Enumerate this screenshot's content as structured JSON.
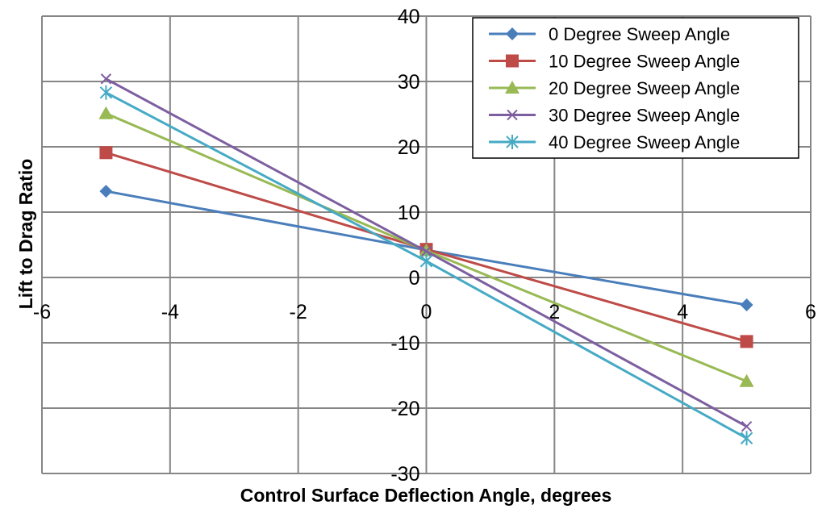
{
  "chart_data": {
    "type": "line",
    "title": "",
    "xlabel": "Control Surface Deflection Angle, degrees",
    "ylabel": "Lift to Drag Ratio",
    "xlim": [
      -6,
      6
    ],
    "ylim": [
      -30,
      40
    ],
    "xticks": [
      -6,
      -4,
      -2,
      0,
      2,
      4,
      6
    ],
    "yticks": [
      -30,
      -20,
      -10,
      0,
      10,
      20,
      30,
      40
    ],
    "grid": true,
    "legend_position": "top-right",
    "x": [
      -5,
      0,
      5
    ],
    "series": [
      {
        "name": "0 Degree Sweep Angle",
        "color": "#4a7ebb",
        "marker": "diamond",
        "values": [
          13.2,
          4.2,
          -4.2
        ]
      },
      {
        "name": "10 Degree Sweep Angle",
        "color": "#be4b48",
        "marker": "square",
        "values": [
          19.1,
          4.3,
          -9.8
        ]
      },
      {
        "name": "20 Degree Sweep Angle",
        "color": "#98b954",
        "marker": "triangle",
        "values": [
          25.1,
          4.1,
          -15.9
        ]
      },
      {
        "name": "30 Degree Sweep Angle",
        "color": "#7d5fa0",
        "marker": "x",
        "values": [
          30.4,
          4.0,
          -22.8
        ]
      },
      {
        "name": "40 Degree Sweep Angle",
        "color": "#46aac5",
        "marker": "star",
        "values": [
          28.3,
          2.5,
          -24.6
        ]
      }
    ]
  }
}
